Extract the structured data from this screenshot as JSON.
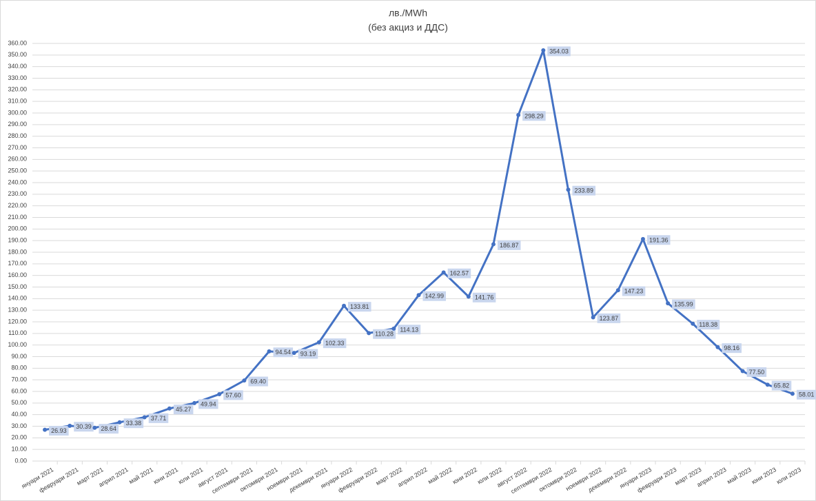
{
  "chart_data": {
    "type": "line",
    "title": "лв./MWh",
    "subtitle": "(без акциз и ДДС)",
    "categories": [
      "януари 2021",
      "февруари 2021",
      "март 2021",
      "април 2021",
      "май 2021",
      "юни 2021",
      "юли 2021",
      "август 2021",
      "септември 2021",
      "октомври 2021",
      "ноември 2021",
      "декември 2021",
      "януари 2022",
      "февруари 2022",
      "март 2022",
      "април 2022",
      "май 2022",
      "юни 2022",
      "юли 2022",
      "август 2022",
      "септември 2022",
      "октомври 2022",
      "ноември 2022",
      "декември 2022",
      "януари 2023",
      "февруари 2023",
      "март 2023",
      "април 2023",
      "май 2023",
      "юни 2023",
      "юли 2023"
    ],
    "values": [
      26.93,
      30.39,
      28.64,
      33.38,
      37.71,
      45.27,
      49.94,
      57.6,
      69.4,
      94.54,
      93.19,
      102.33,
      133.81,
      110.28,
      114.13,
      142.99,
      162.57,
      141.76,
      186.87,
      298.29,
      354.03,
      233.89,
      123.87,
      147.23,
      191.36,
      135.99,
      118.38,
      98.16,
      77.5,
      65.82,
      58.01
    ],
    "value_labels": [
      "26.93",
      "30.39",
      "28.64",
      "33.38",
      "37.71",
      "45.27",
      "49.94",
      "57.60",
      "69.40",
      "94.54",
      "93.19",
      "102.33",
      "133.81",
      "110.28",
      "114.13",
      "142.99",
      "162.57",
      "141.76",
      "186.87",
      "298.29",
      "354.03",
      "233.89",
      "123.87",
      "147.23",
      "191.36",
      "135.99",
      "118.38",
      "98.16",
      "77.50",
      "65.82",
      "58.01"
    ],
    "color": "#4472c4",
    "ylim": [
      0,
      360
    ],
    "yticks": [
      {
        "value": 0,
        "label": "0.00"
      },
      {
        "value": 10,
        "label": "10.00"
      },
      {
        "value": 20,
        "label": "20.00"
      },
      {
        "value": 30,
        "label": "30.00"
      },
      {
        "value": 40,
        "label": "40.00"
      },
      {
        "value": 50,
        "label": "50.00"
      },
      {
        "value": 60,
        "label": "60.00"
      },
      {
        "value": 70,
        "label": "70.00"
      },
      {
        "value": 80,
        "label": "80.00"
      },
      {
        "value": 90,
        "label": "90.00"
      },
      {
        "value": 100,
        "label": "100.00"
      },
      {
        "value": 110,
        "label": "110.00"
      },
      {
        "value": 120,
        "label": "120.00"
      },
      {
        "value": 130,
        "label": "130.00"
      },
      {
        "value": 140,
        "label": "140.00"
      },
      {
        "value": 150,
        "label": "150.00"
      },
      {
        "value": 160,
        "label": "160.00"
      },
      {
        "value": 170,
        "label": "170.00"
      },
      {
        "value": 180,
        "label": "180.00"
      },
      {
        "value": 190,
        "label": "190.00"
      },
      {
        "value": 200,
        "label": "200.00"
      },
      {
        "value": 210,
        "label": "210.00"
      },
      {
        "value": 220,
        "label": "220.00"
      },
      {
        "value": 230,
        "label": "230.00"
      },
      {
        "value": 240,
        "label": "240.00"
      },
      {
        "value": 250,
        "label": "250.00"
      },
      {
        "value": 260,
        "label": "260.00"
      },
      {
        "value": 270,
        "label": "270.00"
      },
      {
        "value": 280,
        "label": "280.00"
      },
      {
        "value": 290,
        "label": "290.00"
      },
      {
        "value": 300,
        "label": "300.00"
      },
      {
        "value": 310,
        "label": "310.00"
      },
      {
        "value": 320,
        "label": "320.00"
      },
      {
        "value": 330,
        "label": "330.00"
      },
      {
        "value": 340,
        "label": "340.00"
      },
      {
        "value": 350,
        "label": "350.00"
      },
      {
        "value": 360,
        "label": "360.00"
      }
    ],
    "grid": true
  }
}
